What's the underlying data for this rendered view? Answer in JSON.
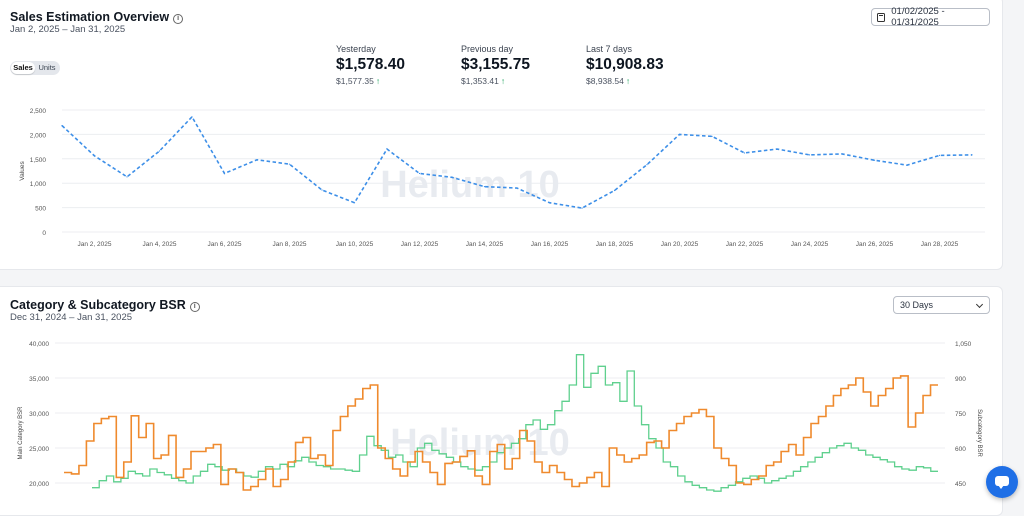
{
  "sales": {
    "title": "Sales Estimation Overview",
    "date_range": "Jan 2, 2025 – Jan 31, 2025",
    "date_picker_value": "01/02/2025 - 01/31/2025",
    "toggle": {
      "sales_label": "Sales",
      "units_label": "Units"
    },
    "kpis": [
      {
        "label": "Yesterday",
        "value": "$1,578.40",
        "compare": "$1,577.35"
      },
      {
        "label": "Previous day",
        "value": "$3,155.75",
        "compare": "$1,353.41"
      },
      {
        "label": "Last 7 days",
        "value": "$10,908.83",
        "compare": "$8,938.54"
      }
    ]
  },
  "bsr": {
    "title": "Category & Subcategory BSR",
    "date_range": "Dec 31, 2024 – Jan 31, 2025",
    "period_select": "30 Days"
  },
  "colors": {
    "sales_line": "#3d8fe8",
    "main_bsr": "#ef8a2d",
    "sub_bsr": "#5fd08e",
    "accent": "#1f6fe6",
    "up_arrow": "#19a05a"
  },
  "chart_data": [
    {
      "type": "line",
      "ylabel": "Values",
      "watermark": "Helium 10",
      "ylim": [
        0,
        2500
      ],
      "yticks": [
        "0",
        "500",
        "1,000",
        "1,500",
        "2,000",
        "2,500"
      ],
      "xticks": [
        "Jan 2, 2025",
        "Jan 4, 2025",
        "Jan 6, 2025",
        "Jan 8, 2025",
        "Jan 10, 2025",
        "Jan 12, 2025",
        "Jan 14, 2025",
        "Jan 16, 2025",
        "Jan 18, 2025",
        "Jan 20, 2025",
        "Jan 22, 2025",
        "Jan 24, 2025",
        "Jan 26, 2025",
        "Jan 28, 2025"
      ],
      "series": [
        {
          "name": "Sales",
          "values": [
            2180,
            1560,
            1130,
            1660,
            2360,
            1200,
            1480,
            1390,
            860,
            600,
            1700,
            1200,
            1120,
            930,
            900,
            600,
            490,
            850,
            1380,
            2000,
            1960,
            1620,
            1700,
            1580,
            1600,
            1470,
            1370,
            1570,
            1580
          ]
        }
      ]
    },
    {
      "type": "line",
      "watermark": "Helium 10",
      "ylabel": "Main Category BSR",
      "y2label": "Subcategory BSR",
      "ylim": [
        20000,
        40000
      ],
      "y2lim": [
        450,
        1050
      ],
      "yticks": [
        "20,000",
        "25,000",
        "30,000",
        "35,000",
        "40,000"
      ],
      "y2ticks": [
        "450",
        "600",
        "750",
        "900",
        "1,050"
      ],
      "series": [
        {
          "name": "Main Category BSR",
          "axis": "left",
          "values": [
            21500,
            21300,
            22500,
            26000,
            28500,
            29200,
            29500,
            20800,
            23000,
            29600,
            26500,
            28500,
            23500,
            24000,
            26800,
            20800,
            22000,
            24500,
            24500,
            25000,
            25500,
            19800,
            22000,
            21500,
            19000,
            19500,
            20500,
            22000,
            19500,
            20500,
            23000,
            25800,
            26500,
            23500,
            24000,
            22500,
            27500,
            29500,
            31000,
            32000,
            33500,
            34000,
            25000,
            23500,
            22000,
            21000,
            23000,
            24500,
            23000,
            21500,
            19800,
            22800,
            23000,
            23800,
            24600,
            21000,
            19800,
            24500,
            25500,
            22000,
            23500,
            27500,
            26000,
            23000,
            21500,
            22500,
            21500,
            20500,
            19500,
            20000,
            20800,
            21500,
            19500,
            25000,
            24000,
            23000,
            23500,
            24000,
            25800,
            26000,
            25000,
            27500,
            28500,
            29500,
            30000,
            30500,
            29500,
            25000,
            23500,
            22500,
            20000,
            19800,
            20500,
            21000,
            22500,
            23000,
            24500,
            25500,
            24000,
            26500,
            28500,
            29500,
            31000,
            32500,
            33500,
            34000,
            35000,
            33000,
            31000,
            32500,
            33500,
            35000,
            35300,
            28000,
            30000,
            32500,
            34000
          ]
        },
        {
          "name": "Subcategory BSR",
          "axis": "right",
          "values": [
            430,
            460,
            480,
            455,
            470,
            500,
            490,
            480,
            510,
            495,
            485,
            470,
            460,
            450,
            480,
            500,
            530,
            520,
            505,
            510,
            495,
            480,
            475,
            500,
            520,
            510,
            530,
            520,
            545,
            560,
            540,
            525,
            520,
            510,
            510,
            505,
            500,
            570,
            650,
            610,
            590,
            560,
            570,
            540,
            520,
            600,
            620,
            590,
            575,
            560,
            540,
            520,
            510,
            505,
            520,
            540,
            580,
            600,
            620,
            640,
            700,
            720,
            680,
            700,
            760,
            800,
            870,
            1000,
            860,
            920,
            950,
            870,
            880,
            800,
            930,
            780,
            700,
            640,
            600,
            540,
            520,
            480,
            455,
            440,
            430,
            420,
            415,
            430,
            440,
            455,
            470,
            480,
            470,
            450,
            460,
            470,
            480,
            500,
            520,
            540,
            560,
            580,
            600,
            610,
            620,
            600,
            590,
            570,
            560,
            550,
            540,
            520,
            510,
            505,
            520,
            515,
            500
          ]
        }
      ]
    }
  ]
}
